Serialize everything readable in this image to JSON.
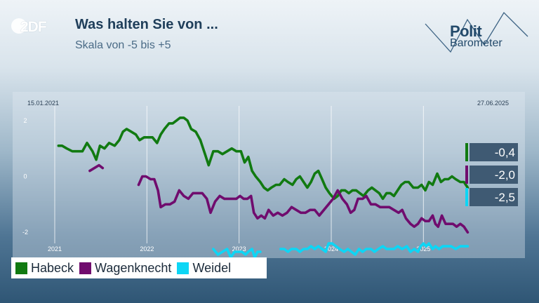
{
  "header": {
    "logo": "2DF",
    "title": "Was halten Sie von ...",
    "subtitle": "Skala von -5 bis +5",
    "brand_line1": "Polit",
    "brand_line2": "Barometer"
  },
  "chart_data": {
    "type": "line",
    "start_date_label": "15.01.2021",
    "end_date_label": "27.06.2025",
    "ylim": [
      -2.8,
      2.4
    ],
    "yticks": [
      2,
      0,
      -2
    ],
    "ytick_labels": [
      "2",
      "0",
      "-2"
    ],
    "xticks": [
      "2021",
      "2022",
      "2023",
      "2024",
      "2025"
    ],
    "legend_position": "bottom-left",
    "series": [
      {
        "name": "Habeck",
        "color": "#117a11",
        "last_label": "-0,4",
        "points": [
          [
            2021.04,
            1.1
          ],
          [
            2021.08,
            1.1
          ],
          [
            2021.13,
            1.0
          ],
          [
            2021.19,
            0.9
          ],
          [
            2021.25,
            0.9
          ],
          [
            2021.3,
            0.9
          ],
          [
            2021.35,
            1.2
          ],
          [
            2021.41,
            0.9
          ],
          [
            2021.45,
            0.6
          ],
          [
            2021.49,
            1.1
          ],
          [
            2021.54,
            1.0
          ],
          [
            2021.59,
            1.2
          ],
          [
            2021.65,
            1.1
          ],
          [
            2021.7,
            1.3
          ],
          [
            2021.74,
            1.6
          ],
          [
            2021.78,
            1.7
          ],
          [
            2021.83,
            1.6
          ],
          [
            2021.88,
            1.5
          ],
          [
            2021.92,
            1.3
          ],
          [
            2021.97,
            1.4
          ],
          [
            2022.02,
            1.4
          ],
          [
            2022.06,
            1.4
          ],
          [
            2022.11,
            1.2
          ],
          [
            2022.15,
            1.5
          ],
          [
            2022.19,
            1.7
          ],
          [
            2022.24,
            1.9
          ],
          [
            2022.28,
            1.9
          ],
          [
            2022.32,
            2.0
          ],
          [
            2022.36,
            2.1
          ],
          [
            2022.4,
            2.1
          ],
          [
            2022.44,
            2.0
          ],
          [
            2022.48,
            1.7
          ],
          [
            2022.53,
            1.6
          ],
          [
            2022.58,
            1.3
          ],
          [
            2022.63,
            0.8
          ],
          [
            2022.67,
            0.4
          ],
          [
            2022.72,
            0.9
          ],
          [
            2022.77,
            0.9
          ],
          [
            2022.82,
            0.8
          ],
          [
            2022.87,
            0.9
          ],
          [
            2022.92,
            1.0
          ],
          [
            2022.97,
            0.9
          ],
          [
            2023.02,
            0.9
          ],
          [
            2023.06,
            0.5
          ],
          [
            2023.1,
            0.7
          ],
          [
            2023.14,
            0.2
          ],
          [
            2023.18,
            0.0
          ],
          [
            2023.23,
            -0.2
          ],
          [
            2023.27,
            -0.4
          ],
          [
            2023.31,
            -0.5
          ],
          [
            2023.35,
            -0.4
          ],
          [
            2023.4,
            -0.3
          ],
          [
            2023.44,
            -0.3
          ],
          [
            2023.49,
            -0.1
          ],
          [
            2023.53,
            -0.2
          ],
          [
            2023.58,
            -0.3
          ],
          [
            2023.62,
            -0.1
          ],
          [
            2023.66,
            0.0
          ],
          [
            2023.7,
            -0.2
          ],
          [
            2023.74,
            -0.4
          ],
          [
            2023.78,
            -0.2
          ],
          [
            2023.82,
            0.1
          ],
          [
            2023.86,
            0.2
          ],
          [
            2023.9,
            -0.1
          ],
          [
            2023.94,
            -0.4
          ],
          [
            2023.98,
            -0.6
          ],
          [
            2024.03,
            -0.8
          ],
          [
            2024.07,
            -0.7
          ],
          [
            2024.11,
            -0.5
          ],
          [
            2024.15,
            -0.5
          ],
          [
            2024.19,
            -0.6
          ],
          [
            2024.23,
            -0.5
          ],
          [
            2024.27,
            -0.5
          ],
          [
            2024.31,
            -0.6
          ],
          [
            2024.35,
            -0.7
          ],
          [
            2024.4,
            -0.5
          ],
          [
            2024.44,
            -0.4
          ],
          [
            2024.48,
            -0.5
          ],
          [
            2024.52,
            -0.6
          ],
          [
            2024.56,
            -0.8
          ],
          [
            2024.6,
            -0.6
          ],
          [
            2024.64,
            -0.6
          ],
          [
            2024.68,
            -0.7
          ],
          [
            2024.72,
            -0.5
          ],
          [
            2024.76,
            -0.3
          ],
          [
            2024.8,
            -0.2
          ],
          [
            2024.84,
            -0.2
          ],
          [
            2024.89,
            -0.4
          ],
          [
            2024.94,
            -0.4
          ],
          [
            2024.98,
            -0.3
          ],
          [
            2025.02,
            -0.5
          ],
          [
            2025.06,
            -0.2
          ],
          [
            2025.1,
            -0.3
          ],
          [
            2025.15,
            0.1
          ],
          [
            2025.19,
            -0.2
          ],
          [
            2025.23,
            -0.1
          ],
          [
            2025.27,
            -0.1
          ],
          [
            2025.31,
            0.0
          ],
          [
            2025.35,
            -0.1
          ],
          [
            2025.4,
            -0.2
          ],
          [
            2025.44,
            -0.2
          ],
          [
            2025.48,
            -0.4
          ]
        ]
      },
      {
        "name": "Wagenknecht",
        "color": "#700c6e",
        "last_label": "-2,0",
        "segments": [
          [
            [
              2021.38,
              0.2
            ],
            [
              2021.43,
              0.3
            ],
            [
              2021.48,
              0.4
            ],
            [
              2021.52,
              0.3
            ]
          ],
          [
            [
              2021.91,
              -0.3
            ],
            [
              2021.95,
              0.0
            ],
            [
              2021.99,
              0.0
            ],
            [
              2022.04,
              -0.1
            ],
            [
              2022.08,
              -0.1
            ],
            [
              2022.12,
              -0.5
            ],
            [
              2022.15,
              -1.1
            ],
            [
              2022.2,
              -1.0
            ],
            [
              2022.25,
              -1.0
            ],
            [
              2022.3,
              -0.9
            ],
            [
              2022.35,
              -0.5
            ],
            [
              2022.4,
              -0.7
            ],
            [
              2022.45,
              -0.8
            ],
            [
              2022.5,
              -0.6
            ],
            [
              2022.55,
              -0.6
            ],
            [
              2022.6,
              -0.6
            ],
            [
              2022.65,
              -0.8
            ],
            [
              2022.69,
              -1.3
            ],
            [
              2022.74,
              -0.9
            ],
            [
              2022.79,
              -0.7
            ],
            [
              2022.84,
              -0.8
            ],
            [
              2022.89,
              -0.8
            ],
            [
              2022.93,
              -0.8
            ],
            [
              2022.97,
              -0.8
            ],
            [
              2023.01,
              -0.7
            ],
            [
              2023.05,
              -0.8
            ],
            [
              2023.09,
              -0.8
            ],
            [
              2023.13,
              -0.7
            ],
            [
              2023.16,
              -1.3
            ],
            [
              2023.2,
              -1.5
            ],
            [
              2023.24,
              -1.4
            ],
            [
              2023.28,
              -1.5
            ],
            [
              2023.32,
              -1.2
            ],
            [
              2023.37,
              -1.4
            ],
            [
              2023.42,
              -1.3
            ],
            [
              2023.47,
              -1.4
            ],
            [
              2023.52,
              -1.3
            ],
            [
              2023.57,
              -1.1
            ],
            [
              2023.62,
              -1.2
            ],
            [
              2023.67,
              -1.3
            ],
            [
              2023.72,
              -1.3
            ],
            [
              2023.77,
              -1.2
            ],
            [
              2023.82,
              -1.2
            ],
            [
              2023.87,
              -1.4
            ],
            [
              2023.92,
              -1.2
            ],
            [
              2023.97,
              -1.0
            ],
            [
              2024.02,
              -0.8
            ],
            [
              2024.07,
              -0.5
            ],
            [
              2024.12,
              -0.8
            ],
            [
              2024.17,
              -1.0
            ],
            [
              2024.21,
              -1.3
            ],
            [
              2024.25,
              -1.2
            ],
            [
              2024.29,
              -0.8
            ],
            [
              2024.34,
              -0.8
            ],
            [
              2024.38,
              -0.7
            ],
            [
              2024.43,
              -1.0
            ],
            [
              2024.48,
              -1.0
            ],
            [
              2024.53,
              -1.1
            ],
            [
              2024.58,
              -1.1
            ],
            [
              2024.63,
              -1.1
            ],
            [
              2024.68,
              -1.2
            ],
            [
              2024.73,
              -1.3
            ],
            [
              2024.77,
              -1.2
            ],
            [
              2024.81,
              -1.5
            ],
            [
              2024.86,
              -1.7
            ],
            [
              2024.9,
              -1.8
            ],
            [
              2024.94,
              -1.7
            ],
            [
              2024.98,
              -1.5
            ],
            [
              2025.02,
              -1.6
            ],
            [
              2025.06,
              -1.6
            ],
            [
              2025.1,
              -1.4
            ],
            [
              2025.13,
              -1.7
            ],
            [
              2025.16,
              -1.8
            ],
            [
              2025.2,
              -1.4
            ],
            [
              2025.24,
              -1.7
            ],
            [
              2025.28,
              -1.7
            ],
            [
              2025.32,
              -1.7
            ],
            [
              2025.36,
              -1.8
            ],
            [
              2025.4,
              -1.7
            ],
            [
              2025.44,
              -1.8
            ],
            [
              2025.48,
              -2.0
            ]
          ]
        ]
      },
      {
        "name": "Weidel",
        "color": "#0dd6f5",
        "last_label": "-2,5",
        "segments": [
          [
            [
              2022.72,
              -2.6
            ],
            [
              2022.77,
              -2.8
            ],
            [
              2022.82,
              -2.7
            ],
            [
              2022.87,
              -2.6
            ],
            [
              2022.91,
              -2.9
            ],
            [
              2022.95,
              -2.7
            ],
            [
              2022.99,
              -2.7
            ],
            [
              2023.03,
              -2.7
            ],
            [
              2023.07,
              -2.8
            ],
            [
              2023.1,
              -2.7
            ],
            [
              2023.14,
              -2.6
            ],
            [
              2023.17,
              -2.9
            ],
            [
              2023.2,
              -2.7
            ],
            [
              2023.23,
              -2.7
            ]
          ],
          [
            [
              2023.45,
              -2.6
            ],
            [
              2023.49,
              -2.6
            ],
            [
              2023.53,
              -2.7
            ],
            [
              2023.57,
              -2.6
            ],
            [
              2023.62,
              -2.6
            ],
            [
              2023.66,
              -2.7
            ],
            [
              2023.7,
              -2.6
            ],
            [
              2023.74,
              -2.6
            ],
            [
              2023.78,
              -2.5
            ],
            [
              2023.82,
              -2.6
            ],
            [
              2023.86,
              -2.5
            ],
            [
              2023.9,
              -2.6
            ],
            [
              2023.94,
              -2.7
            ],
            [
              2023.97,
              -2.4
            ],
            [
              2024.01,
              -2.4
            ],
            [
              2024.05,
              -2.5
            ],
            [
              2024.09,
              -2.6
            ],
            [
              2024.14,
              -2.7
            ],
            [
              2024.18,
              -2.6
            ],
            [
              2024.22,
              -2.7
            ],
            [
              2024.26,
              -2.8
            ],
            [
              2024.3,
              -2.6
            ],
            [
              2024.34,
              -2.7
            ],
            [
              2024.38,
              -2.6
            ],
            [
              2024.43,
              -2.6
            ],
            [
              2024.47,
              -2.7
            ],
            [
              2024.51,
              -2.6
            ],
            [
              2024.56,
              -2.5
            ],
            [
              2024.6,
              -2.6
            ],
            [
              2024.64,
              -2.6
            ],
            [
              2024.68,
              -2.6
            ],
            [
              2024.72,
              -2.5
            ],
            [
              2024.77,
              -2.6
            ],
            [
              2024.82,
              -2.5
            ],
            [
              2024.86,
              -2.7
            ],
            [
              2024.9,
              -2.6
            ],
            [
              2024.94,
              -2.7
            ],
            [
              2024.97,
              -2.5
            ],
            [
              2025.0,
              -2.4
            ],
            [
              2025.03,
              -2.5
            ],
            [
              2025.06,
              -2.4
            ],
            [
              2025.1,
              -2.6
            ],
            [
              2025.13,
              -2.5
            ],
            [
              2025.17,
              -2.6
            ],
            [
              2025.21,
              -2.5
            ],
            [
              2025.25,
              -2.5
            ],
            [
              2025.3,
              -2.5
            ],
            [
              2025.35,
              -2.6
            ],
            [
              2025.4,
              -2.5
            ],
            [
              2025.44,
              -2.5
            ],
            [
              2025.48,
              -2.5
            ]
          ]
        ]
      }
    ]
  }
}
